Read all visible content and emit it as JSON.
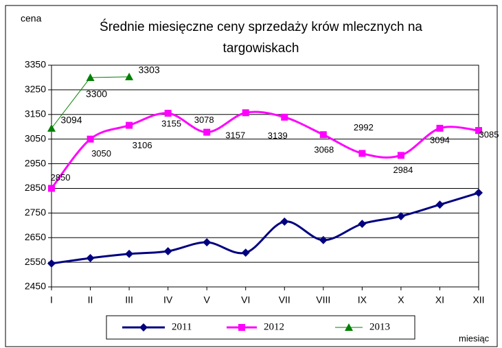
{
  "chart_data": {
    "type": "line",
    "title": "Średnie miesięczne ceny sprzedaży krów mlecznych na targowiskach",
    "y_label": "cena",
    "x_label": "miesiąc",
    "categories": [
      "I",
      "II",
      "III",
      "IV",
      "V",
      "VI",
      "VII",
      "VIII",
      "IX",
      "X",
      "XI",
      "XII"
    ],
    "series": [
      {
        "name": "2011",
        "color": "#000080",
        "marker": "diamond",
        "values": [
          2545,
          2567,
          2584,
          2595,
          2631,
          2589,
          2715,
          2640,
          2706,
          2737,
          2784,
          2832
        ]
      },
      {
        "name": "2012",
        "color": "#ff00ff",
        "marker": "square",
        "values": [
          2850,
          3050,
          3106,
          3155,
          3078,
          3157,
          3139,
          3068,
          2992,
          2984,
          3094,
          3085
        ]
      },
      {
        "name": "2013",
        "color": "#008000",
        "marker": "triangle",
        "values": [
          3094,
          3300,
          3303,
          null,
          null,
          null,
          null,
          null,
          null,
          null,
          null,
          null
        ]
      }
    ],
    "show_value_labels": [
      "2012",
      "2013"
    ],
    "ylim": [
      2450,
      3350
    ],
    "yticks": [
      2450,
      2550,
      2650,
      2750,
      2850,
      2950,
      3050,
      3150,
      3250,
      3350
    ],
    "grid": true,
    "legend": "bottom"
  }
}
